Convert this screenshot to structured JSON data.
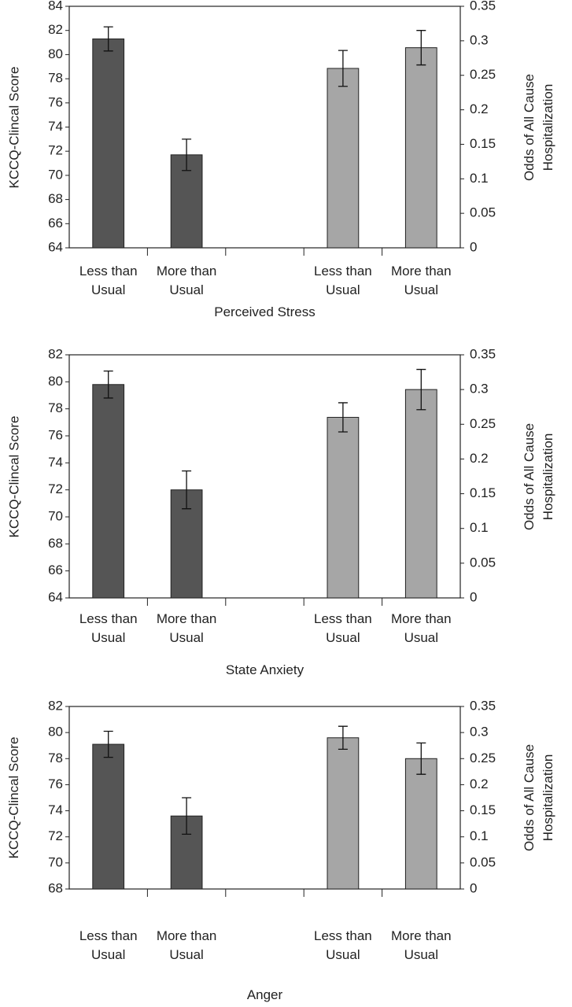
{
  "chart_data": [
    {
      "type": "bar",
      "xlabel": "Perceived Stress",
      "ylabel": "KCCQ-Clincal Score",
      "y2label": "Odds of All Cause Hospitalization",
      "categories": [
        "Less than Usual",
        "More than Usual",
        null,
        "Less than Usual",
        "More than Usual"
      ],
      "series": [
        {
          "color": "#555555",
          "axis": "y",
          "values": [
            81.3,
            71.7,
            null,
            null,
            null
          ],
          "errors": [
            1.0,
            1.3,
            null,
            null,
            null
          ]
        },
        {
          "color": "#a6a6a6",
          "axis": "y2",
          "values": [
            null,
            null,
            null,
            0.26,
            0.29
          ],
          "errors": [
            null,
            null,
            null,
            0.026,
            0.025
          ]
        }
      ],
      "ylim": [
        64,
        84
      ],
      "yticks": [
        64,
        66,
        68,
        70,
        72,
        74,
        76,
        78,
        80,
        82,
        84
      ],
      "y2lim": [
        0,
        0.35
      ],
      "y2ticks": [
        0,
        0.05,
        0.1,
        0.15,
        0.2,
        0.25,
        0.3,
        0.35
      ]
    },
    {
      "type": "bar",
      "xlabel": "State Anxiety",
      "ylabel": "KCCQ-Clincal Score",
      "y2label": "Odds of All Cause Hospitalization",
      "categories": [
        "Less than Usual",
        "More than Usual",
        null,
        "Less than Usual",
        "More than Usual"
      ],
      "series": [
        {
          "color": "#555555",
          "axis": "y",
          "values": [
            79.8,
            72.0,
            null,
            null,
            null
          ],
          "errors": [
            1.0,
            1.4,
            null,
            null,
            null
          ]
        },
        {
          "color": "#a6a6a6",
          "axis": "y2",
          "values": [
            null,
            null,
            null,
            0.26,
            0.3
          ],
          "errors": [
            null,
            null,
            null,
            0.021,
            0.029
          ]
        }
      ],
      "ylim": [
        64,
        82
      ],
      "yticks": [
        64,
        66,
        68,
        70,
        72,
        74,
        76,
        78,
        80,
        82
      ],
      "y2lim": [
        0,
        0.35
      ],
      "y2ticks": [
        0,
        0.05,
        0.1,
        0.15,
        0.2,
        0.25,
        0.3,
        0.35
      ]
    },
    {
      "type": "bar",
      "xlabel": "Anger",
      "ylabel": "KCCQ-Clincal Score",
      "y2label": "Odds of All Cause Hospitalization",
      "categories": [
        "Less than Usual",
        "More than Usual",
        null,
        "Less than Usual",
        "More than Usual"
      ],
      "series": [
        {
          "color": "#555555",
          "axis": "y",
          "values": [
            79.1,
            73.6,
            null,
            null,
            null
          ],
          "errors": [
            1.0,
            1.4,
            null,
            null,
            null
          ]
        },
        {
          "color": "#a6a6a6",
          "axis": "y2",
          "values": [
            null,
            null,
            null,
            0.29,
            0.25
          ],
          "errors": [
            null,
            null,
            null,
            0.022,
            0.03
          ]
        }
      ],
      "ylim": [
        68,
        82
      ],
      "yticks": [
        68,
        70,
        72,
        74,
        76,
        78,
        80,
        82
      ],
      "y2lim": [
        0,
        0.35
      ],
      "y2ticks": [
        0,
        0.05,
        0.1,
        0.15,
        0.2,
        0.25,
        0.3,
        0.35
      ]
    }
  ]
}
